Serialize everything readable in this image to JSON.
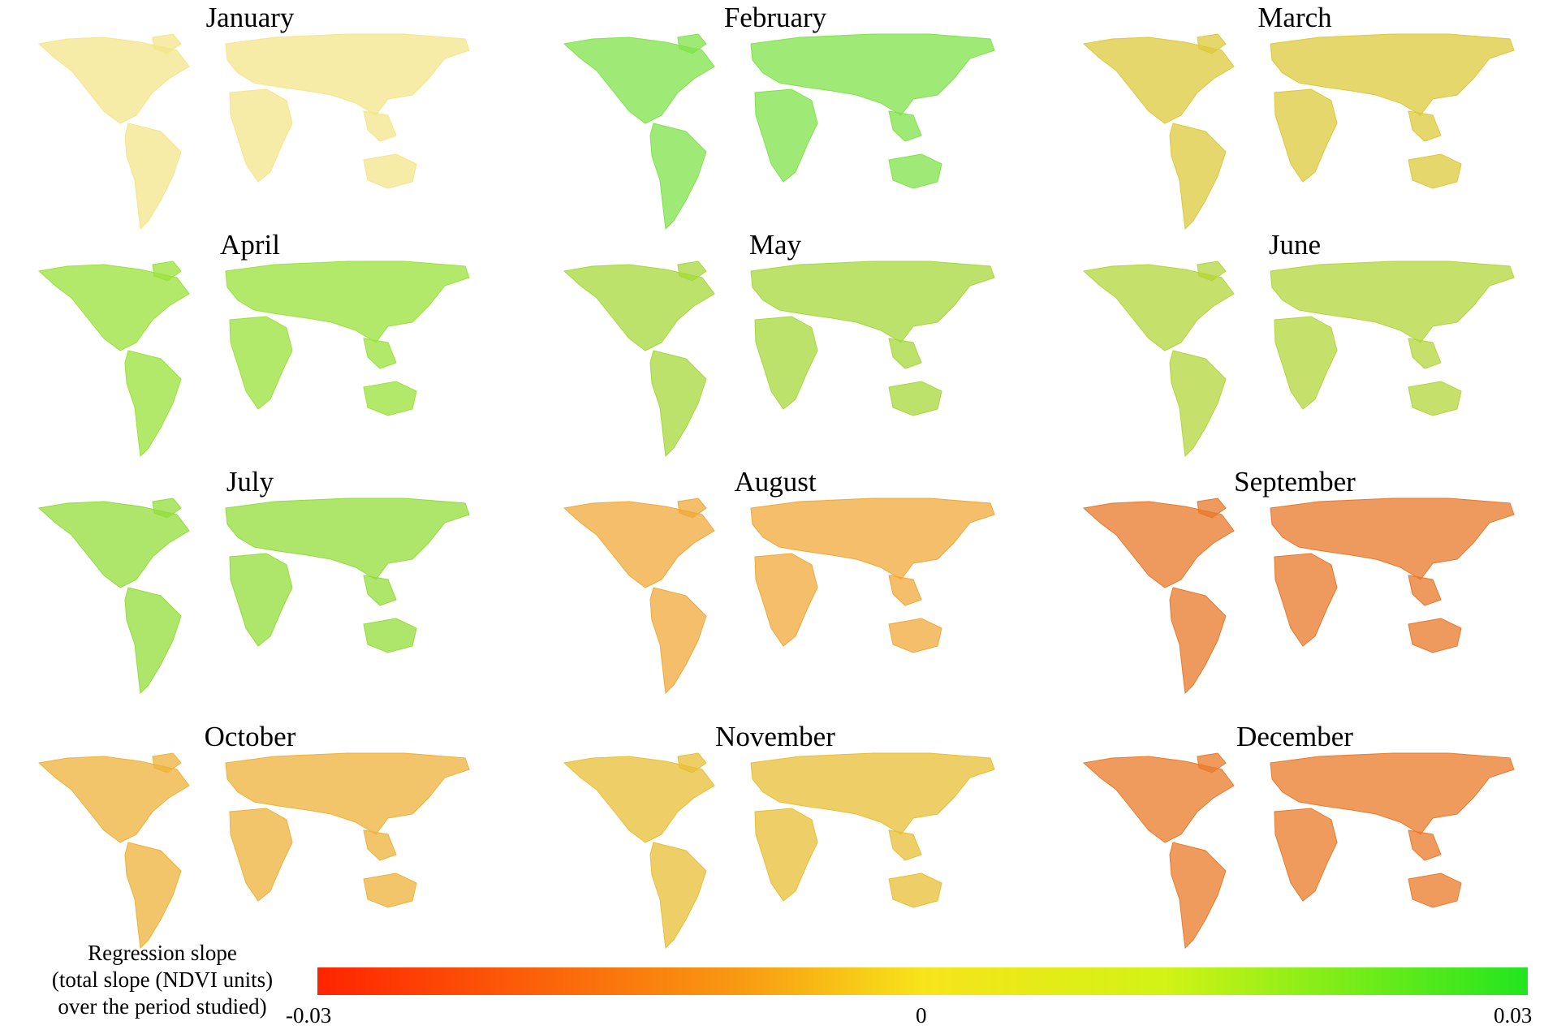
{
  "months": [
    "January",
    "February",
    "March",
    "April",
    "May",
    "June",
    "July",
    "August",
    "September",
    "October",
    "November",
    "December"
  ],
  "panel_trend_color": [
    "#f3e68a",
    "#7fe34a",
    "#dcc93a",
    "#9ae23a",
    "#a6d83a",
    "#b2d63a",
    "#93dc3a",
    "#f0a83a",
    "#e8782a",
    "#eeb23a",
    "#e8bf34",
    "#eb7a28"
  ],
  "legend": {
    "label_line1": "Regression slope",
    "label_line2": "(total slope (NDVI units)",
    "label_line3": "over the period studied)",
    "tick_min": "-0.03",
    "tick_mid": "0",
    "tick_max": "0.03",
    "range": [
      -0.03,
      0.03
    ],
    "color_low": "#ff2400",
    "color_mid": "#f7e41a",
    "color_high": "#22e51e"
  }
}
